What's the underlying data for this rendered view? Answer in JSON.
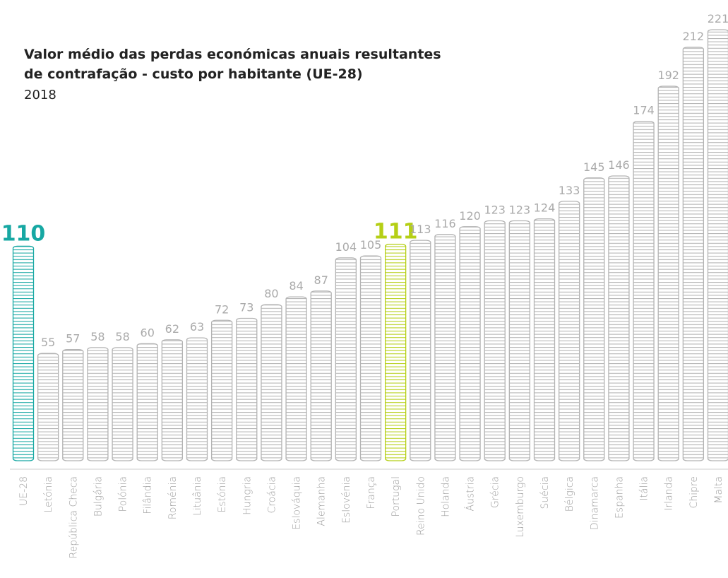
{
  "chart_data": {
    "type": "bar",
    "title": "Valor médio das perdas económicas anuais resultantes",
    "title_line2": "de contrafação - custo por habitante (UE-28)",
    "subtitle": "2018",
    "categories": [
      "UE-28",
      "Letónia",
      "República Checa",
      "Bulgária",
      "Polónia",
      "Filândia",
      "Roménia",
      "Lituânia",
      "Estónia",
      "Hungria",
      "Croácia",
      "Eslováquia",
      "Alemanha",
      "Eslovénia",
      "França",
      "Portugal",
      "Reino Unido",
      "Holanda",
      "Áustria",
      "Grécia",
      "Luxemburgo",
      "Suécia",
      "Bélgica",
      "Dinamarca",
      "Espanha",
      "Itália",
      "Irlanda",
      "Chipre",
      "Malta"
    ],
    "values": [
      110,
      55,
      57,
      58,
      58,
      60,
      62,
      63,
      72,
      73,
      80,
      84,
      87,
      104,
      105,
      111,
      113,
      116,
      120,
      123,
      123,
      124,
      133,
      145,
      146,
      174,
      192,
      212,
      221
    ],
    "colors": [
      "#17a8a3",
      "#b3b3b3",
      "#b3b3b3",
      "#b3b3b3",
      "#b3b3b3",
      "#b3b3b3",
      "#b3b3b3",
      "#b3b3b3",
      "#b3b3b3",
      "#b3b3b3",
      "#b3b3b3",
      "#b3b3b3",
      "#b3b3b3",
      "#b3b3b3",
      "#b3b3b3",
      "#b5cf16",
      "#b3b3b3",
      "#b3b3b3",
      "#b3b3b3",
      "#b3b3b3",
      "#b3b3b3",
      "#b3b3b3",
      "#b3b3b3",
      "#b3b3b3",
      "#b3b3b3",
      "#b3b3b3",
      "#b3b3b3",
      "#b3b3b3",
      "#b3b3b3"
    ]
  }
}
